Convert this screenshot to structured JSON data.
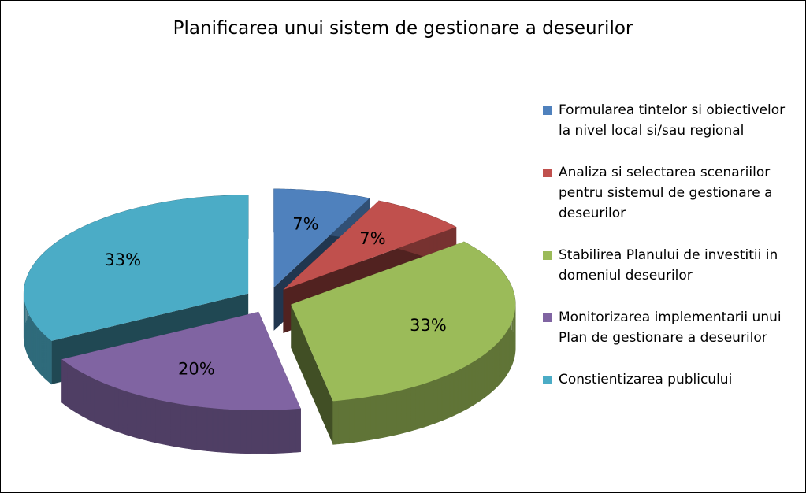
{
  "chart_data": {
    "type": "pie",
    "title": "Planificarea unui sistem de gestionare a deseurilor",
    "categories": [
      "Formularea tintelor si obiectivelor la nivel local si/sau regional",
      "Analiza si selectarea scenariilor pentru sistemul de gestionare a deseurilor",
      "Stabilirea Planului de investitii in domeniul deseurilor",
      "Monitorizarea implementarii unui Plan de gestionare a deseurilor",
      "Constientizarea publicului"
    ],
    "values": [
      7,
      7,
      33,
      20,
      33
    ],
    "value_labels": [
      "7%",
      "7%",
      "33%",
      "20%",
      "33%"
    ],
    "colors": [
      "#4f81bd",
      "#c0504d",
      "#9bbb59",
      "#8064a2",
      "#4bacc6"
    ],
    "legend": "right"
  }
}
